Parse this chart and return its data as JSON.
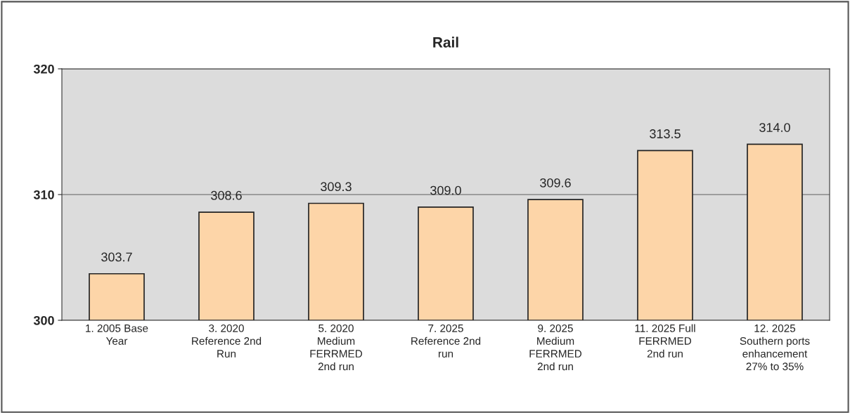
{
  "chart_data": {
    "type": "bar",
    "title": "Rail",
    "categories": [
      "1. 2005 Base\nYear",
      "3. 2020\nReference 2nd\nRun",
      "5. 2020\nMedium\nFERRMED\n2nd run",
      "7. 2025\nReference 2nd\nrun",
      "9. 2025\nMedium\nFERRMED\n2nd run",
      "11. 2025 Full\nFERRMED\n2nd run",
      "12. 2025\nSouthern ports\nenhancement\n27% to 35%"
    ],
    "values": [
      303.7,
      308.6,
      309.3,
      309.0,
      309.6,
      313.5,
      314.0
    ],
    "value_labels": [
      "303.7",
      "308.6",
      "309.3",
      "309.0",
      "309.6",
      "313.5",
      "314.0"
    ],
    "color": "#fdd5a8",
    "ylim": [
      300,
      320
    ],
    "yticks": [
      300,
      310,
      320
    ],
    "grid": "y",
    "legend": false
  }
}
